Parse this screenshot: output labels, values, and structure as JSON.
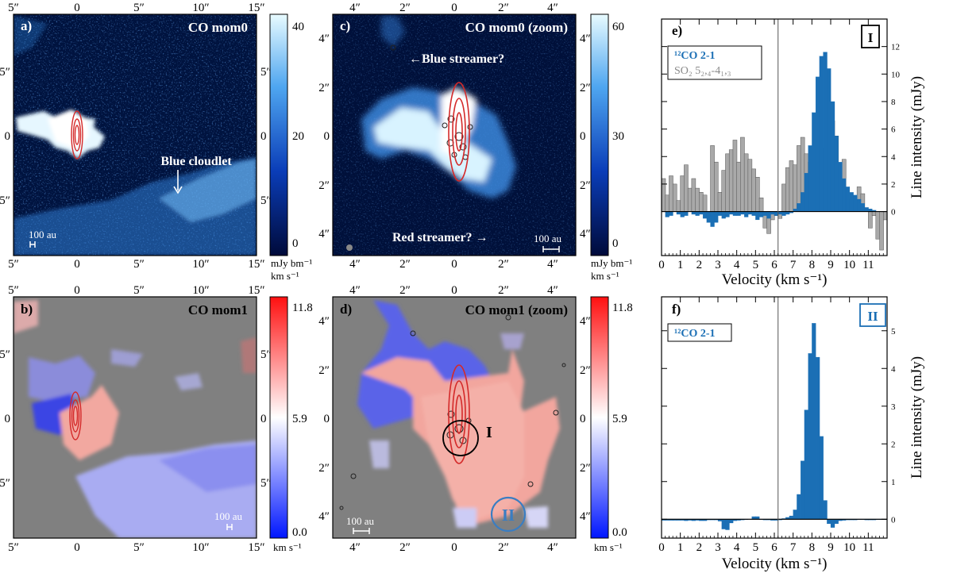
{
  "panels": {
    "a": {
      "label": "a)",
      "title": "CO mom0",
      "annotation": "Blue cloudlet",
      "scalebar": "100 au",
      "x_ticks": [
        "5″",
        "0",
        "5″",
        "10″",
        "15″"
      ],
      "y_ticks": [
        "5″",
        "0",
        "5″"
      ],
      "cbar_ticks": [
        "40",
        "20",
        "0"
      ],
      "cbar_unit_1": "mJy bm⁻¹",
      "cbar_unit_2": "km s⁻¹"
    },
    "b": {
      "label": "b)",
      "title": "CO mom1",
      "scalebar": "100 au",
      "x_ticks": [
        "5″",
        "0",
        "5″",
        "10″",
        "15″"
      ],
      "y_ticks": [
        "5″",
        "0",
        "5″"
      ],
      "cbar_ticks": [
        "11.8",
        "5.9",
        "0.0"
      ],
      "cbar_unit": "km s⁻¹"
    },
    "c": {
      "label": "c)",
      "title": "CO mom0 (zoom)",
      "annotation_blue": "←Blue streamer?",
      "annotation_red": "Red streamer? →",
      "scalebar": "100 au",
      "x_ticks": [
        "4″",
        "2″",
        "0",
        "2″",
        "4″"
      ],
      "y_ticks": [
        "4″",
        "2″",
        "0",
        "2″",
        "4″"
      ],
      "cbar_ticks": [
        "60",
        "30",
        "0"
      ],
      "cbar_unit_1": "mJy bm⁻¹",
      "cbar_unit_2": "km s⁻¹"
    },
    "d": {
      "label": "d)",
      "title": "CO mom1 (zoom)",
      "region_I": "I",
      "region_II": "II",
      "scalebar": "100 au",
      "x_ticks": [
        "4″",
        "2″",
        "0",
        "2″",
        "4″"
      ],
      "y_ticks": [
        "4″",
        "2″",
        "0",
        "2″",
        "4″"
      ],
      "cbar_ticks": [
        "11.8",
        "5.9",
        "0.0"
      ],
      "cbar_unit": "km s⁻¹"
    }
  },
  "colors": {
    "co_blue": "#1b6fb5",
    "so2_grey": "#a9a9a9",
    "red_contour": "#d42a2a"
  },
  "chart_data": [
    {
      "type": "bar",
      "panel_label": "e)",
      "region": "I",
      "xlabel": "Velocity (km s⁻¹)",
      "ylabel": "Line intensity (mJy)",
      "xlim": [
        0,
        12
      ],
      "ylim": [
        -3.2,
        14
      ],
      "x_ticks": [
        "0",
        "1",
        "2",
        "3",
        "4",
        "5",
        "6",
        "7",
        "8",
        "9",
        "10",
        "11"
      ],
      "y_ticks": [
        "0",
        "2",
        "4",
        "6",
        "8",
        "10",
        "12"
      ],
      "vline": 6.2,
      "legend": {
        "co": "¹²CO 2-1",
        "so2": "SO₂ 5₂,₄-4₁,₃"
      },
      "channel_width": 0.2,
      "series": [
        {
          "name": "¹²CO 2-1",
          "start": 0.0,
          "values": [
            0.0,
            -0.4,
            -0.3,
            0.0,
            -0.2,
            -0.4,
            -0.3,
            0.0,
            -0.2,
            -0.3,
            -0.2,
            -0.5,
            -0.8,
            -1.1,
            -0.8,
            -0.3,
            -0.5,
            -0.4,
            -0.2,
            -0.3,
            -0.3,
            -0.2,
            -0.4,
            -0.2,
            -0.3,
            -0.6,
            -0.4,
            -0.3,
            -0.5,
            -0.2,
            -0.3,
            -0.2,
            -0.3,
            -0.2,
            -0.1,
            0.2,
            0.6,
            1.4,
            2.8,
            4.8,
            7.2,
            9.8,
            11.3,
            11.6,
            10.4,
            8.0,
            5.5,
            3.6,
            2.4,
            1.8,
            1.4,
            1.2,
            0.9,
            0.6,
            0.3,
            0.2,
            0.1,
            0.0,
            0.0,
            0.0
          ]
        },
        {
          "name": "SO₂ 5₂,₄-4₁,₃",
          "start": 0.0,
          "values": [
            2.4,
            1.2,
            2.6,
            2.0,
            0.8,
            2.6,
            3.4,
            1.7,
            2.4,
            1.7,
            1.4,
            1.2,
            -0.4,
            4.8,
            3.6,
            1.4,
            3.0,
            4.2,
            4.5,
            5.2,
            3.6,
            5.4,
            4.2,
            3.8,
            3.1,
            2.5,
            1.0,
            -1.2,
            -1.6,
            -0.6,
            -0.3,
            -0.5,
            2.0,
            3.2,
            3.7,
            3.4,
            4.8,
            5.4,
            4.2,
            3.6,
            1.8,
            5.2,
            4.6,
            3.0,
            2.6,
            6.6,
            5.5,
            2.6,
            3.8,
            0.6,
            0.9,
            1.0,
            1.8,
            1.3,
            0.2,
            -1.2,
            -0.3,
            -2.0,
            -2.8,
            -0.6
          ]
        }
      ]
    },
    {
      "type": "bar",
      "panel_label": "f)",
      "region": "II",
      "xlabel": "Velocity (km s⁻¹)",
      "ylabel": "Line intensity (mJy)",
      "xlim": [
        0,
        12
      ],
      "ylim": [
        -0.5,
        5.9
      ],
      "x_ticks": [
        "0",
        "1",
        "2",
        "3",
        "4",
        "5",
        "6",
        "7",
        "8",
        "9",
        "10",
        "11"
      ],
      "y_ticks": [
        "0",
        "1",
        "2",
        "3",
        "4",
        "5"
      ],
      "vline": 6.2,
      "legend": {
        "co": "¹²CO 2-1"
      },
      "channel_width": 0.2,
      "series": [
        {
          "name": "¹²CO 2-1",
          "start": 0.0,
          "values": [
            -0.03,
            -0.03,
            -0.03,
            -0.03,
            -0.03,
            -0.03,
            -0.04,
            -0.03,
            -0.04,
            -0.03,
            -0.04,
            -0.04,
            -0.02,
            -0.02,
            -0.02,
            -0.05,
            -0.26,
            -0.28,
            -0.1,
            -0.04,
            -0.03,
            -0.02,
            -0.01,
            0.0,
            0.07,
            0.07,
            -0.01,
            -0.02,
            -0.02,
            -0.03,
            -0.03,
            -0.02,
            0.02,
            0.05,
            0.09,
            0.25,
            0.66,
            1.55,
            2.9,
            4.4,
            5.2,
            4.3,
            2.2,
            0.5,
            -0.12,
            -0.22,
            -0.12,
            -0.04,
            -0.03,
            -0.02,
            -0.02,
            -0.02,
            -0.01,
            -0.01,
            -0.02,
            -0.02,
            -0.02,
            -0.01,
            -0.01,
            -0.01
          ]
        }
      ]
    }
  ]
}
